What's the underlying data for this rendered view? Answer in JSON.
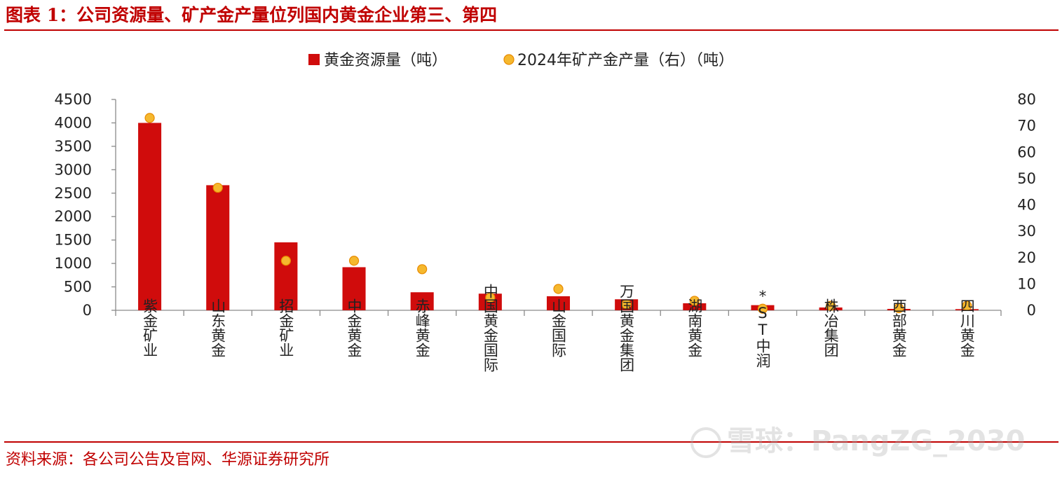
{
  "figure": {
    "title": "图表 1：公司资源量、矿产金产量位列国内黄金企业第三、第四",
    "source": "资料来源：各公司公告及官网、华源证券研究所",
    "watermark": "雪球：PangZG_2030"
  },
  "chart_data": {
    "type": "bar",
    "categories": [
      "紫金矿业",
      "山东黄金",
      "招金矿业",
      "中金黄金",
      "赤峰黄金",
      "中国黄金国际",
      "山金国际",
      "万国黄金集团",
      "湖南黄金",
      "*ST中润",
      "株冶集团",
      "西部黄金",
      "四川黄金"
    ],
    "series": [
      {
        "name": "黄金资源量（吨）",
        "type": "bar",
        "axis": "left",
        "color": "#d00c0c",
        "values": [
          4000,
          2670,
          1450,
          920,
          385,
          355,
          300,
          235,
          150,
          110,
          60,
          30,
          25
        ]
      },
      {
        "name": "2024年矿产金产量（右）（吨）",
        "type": "scatter",
        "axis": "right",
        "color": "#f5b82e",
        "values": [
          73,
          46.5,
          18.8,
          18.8,
          15.6,
          4.8,
          8.1,
          2.3,
          3.6,
          0.6,
          1.7,
          0.8,
          1.7
        ]
      }
    ],
    "y_left": {
      "min": 0,
      "max": 4500,
      "ticks": [
        "0",
        "500",
        "1000",
        "1500",
        "2000",
        "2500",
        "3000",
        "3500",
        "4000",
        "4500"
      ]
    },
    "y_right": {
      "min": 0,
      "max": 80,
      "ticks": [
        "0",
        "10",
        "20",
        "30",
        "40",
        "50",
        "60",
        "70",
        "80"
      ]
    },
    "legend_position": "top-center",
    "grid": false
  }
}
